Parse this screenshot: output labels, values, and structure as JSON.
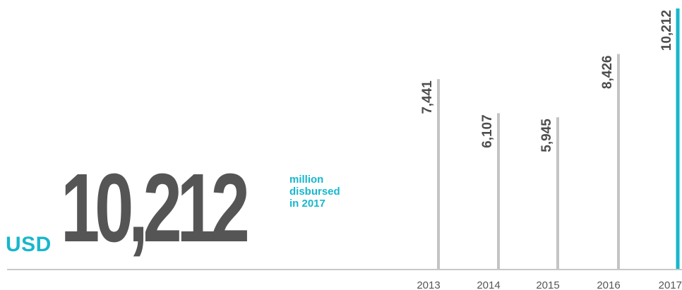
{
  "headline": {
    "currency": "USD",
    "value": "10,212",
    "caption_lines": [
      "million",
      "disbursed",
      "in 2017"
    ]
  },
  "colors": {
    "bar": "#c4c4c4",
    "highlight": "#17b7cc",
    "baseline": "#c8c8c8",
    "headline_text": "#555555",
    "value_label": "#4d4d4d",
    "tick_label": "#555555"
  },
  "chart_data": {
    "type": "bar",
    "title": "",
    "xlabel": "",
    "ylabel": "",
    "categories": [
      "2013",
      "2014",
      "2015",
      "2016",
      "2017"
    ],
    "values": [
      7441,
      6107,
      5945,
      8426,
      10212
    ],
    "value_labels": [
      "7,441",
      "6,107",
      "5,945",
      "8,426",
      "10,212"
    ],
    "highlight_category": "2017",
    "ylim": [
      0,
      10212
    ],
    "grid": false,
    "legend": "none"
  }
}
